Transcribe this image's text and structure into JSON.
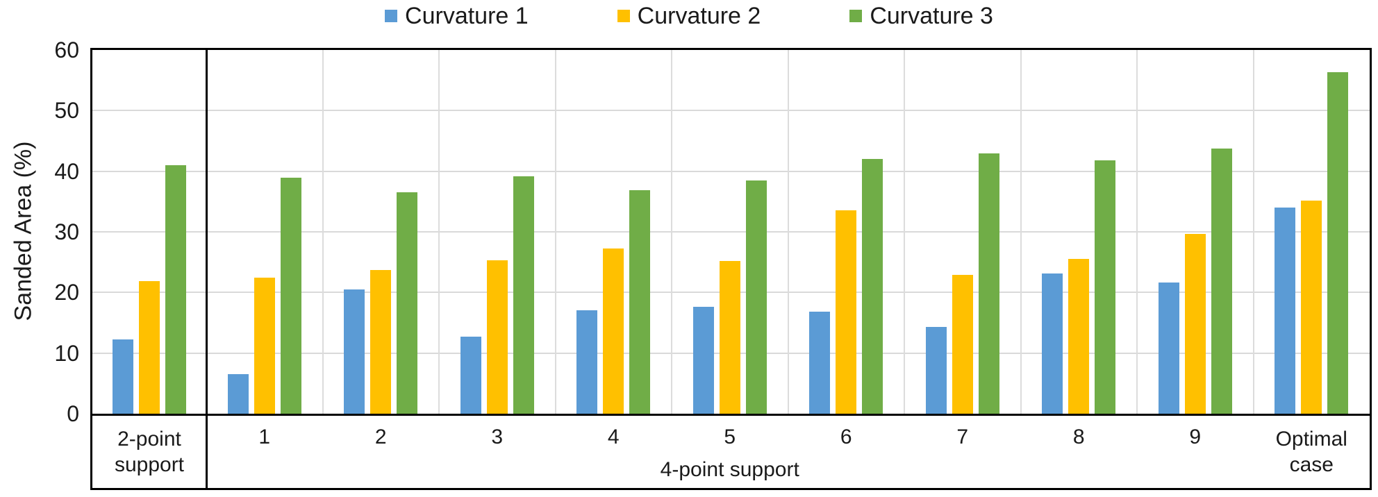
{
  "chart_data": {
    "type": "bar",
    "title": "",
    "ylabel": "Sanded Area (%)",
    "ylim": [
      0,
      60
    ],
    "yticks": [
      0,
      10,
      20,
      30,
      40,
      50,
      60
    ],
    "grid": true,
    "legend_position": "top",
    "categories": [
      "2-point support",
      "1",
      "2",
      "3",
      "4",
      "5",
      "6",
      "7",
      "8",
      "9",
      "Optimal case"
    ],
    "x_axis": {
      "primary_labels": [
        "2-point support",
        "1",
        "2",
        "3",
        "4",
        "5",
        "6",
        "7",
        "8",
        "9",
        "Optimal case"
      ],
      "secondary_label": "4-point support",
      "first_section_label": "2-point support",
      "last_section_label": "Optimal case"
    },
    "series": [
      {
        "name": "Curvature 1",
        "color": "#5B9BD5",
        "values": [
          12.3,
          6.5,
          20.5,
          12.7,
          17.1,
          17.6,
          16.8,
          14.3,
          23.1,
          21.7,
          34.0
        ]
      },
      {
        "name": "Curvature 2",
        "color": "#FFC000",
        "values": [
          21.9,
          22.5,
          23.7,
          25.3,
          27.3,
          25.2,
          33.5,
          22.9,
          25.5,
          29.7,
          35.2
        ]
      },
      {
        "name": "Curvature 3",
        "color": "#70AD47",
        "values": [
          41.0,
          38.9,
          36.5,
          39.2,
          36.9,
          38.5,
          42.0,
          42.9,
          41.8,
          43.7,
          56.3
        ]
      }
    ],
    "axis_color": "#000000",
    "gridline_color": "#D9D9D9",
    "text_color": "#1A1A1A"
  }
}
